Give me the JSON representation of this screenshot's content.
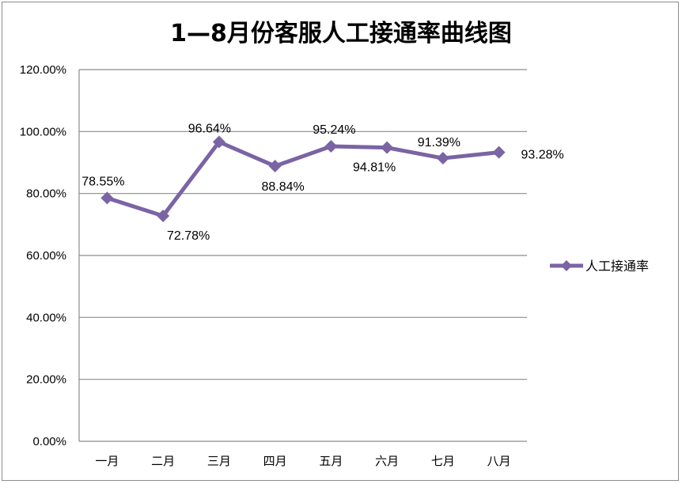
{
  "chart_data": {
    "type": "line",
    "title": "1—8月份客服人工接通率曲线图",
    "categories": [
      "一月",
      "二月",
      "三月",
      "四月",
      "五月",
      "六月",
      "七月",
      "八月"
    ],
    "series": [
      {
        "name": "人工接通率",
        "values": [
          78.55,
          72.78,
          96.64,
          88.84,
          95.24,
          94.81,
          91.39,
          93.28
        ],
        "labels": [
          "78.55%",
          "72.78%",
          "96.64%",
          "88.84%",
          "95.24%",
          "94.81%",
          "91.39%",
          "93.28%"
        ],
        "color": "#7a64a4"
      }
    ],
    "ylim": [
      0,
      120
    ],
    "yticks": [
      "0.00%",
      "20.00%",
      "40.00%",
      "60.00%",
      "80.00%",
      "100.00%",
      "120.00%"
    ],
    "xlabel": "",
    "ylabel": "",
    "grid": true,
    "legend": "right"
  }
}
